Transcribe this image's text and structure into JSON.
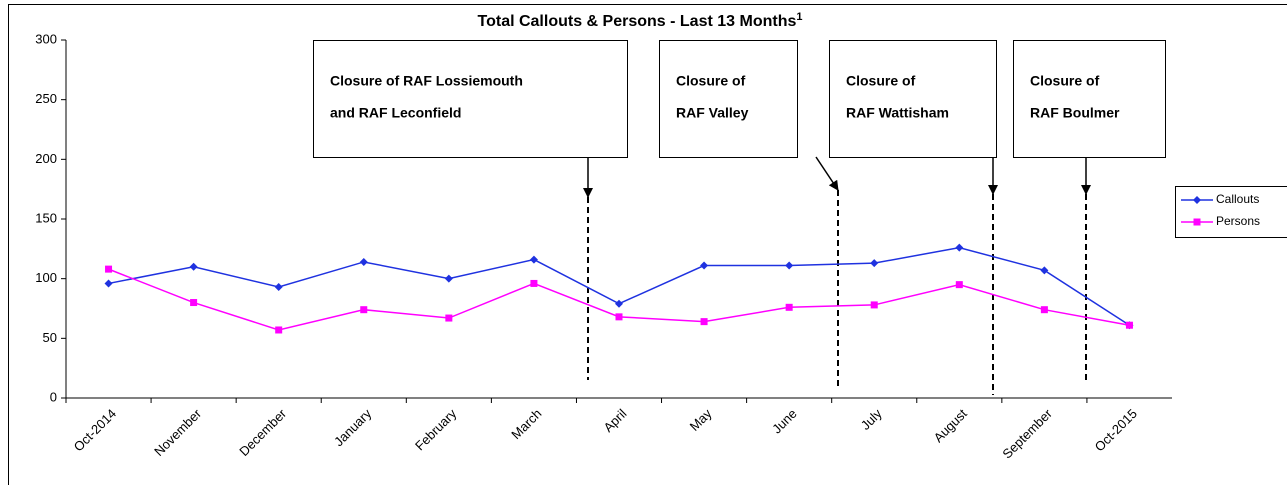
{
  "chart_data": {
    "type": "line",
    "title": "Total Callouts & Persons - Last 13 Months",
    "title_superscript": "1",
    "categories": [
      "Oct-2014",
      "November",
      "December",
      "January",
      "February",
      "March",
      "April",
      "May",
      "June",
      "July",
      "August",
      "September",
      "Oct-2015"
    ],
    "series": [
      {
        "name": "Callouts",
        "color": "#1f32e0",
        "marker": "diamond",
        "values": [
          96,
          110,
          93,
          114,
          100,
          116,
          79,
          111,
          111,
          113,
          126,
          107,
          61
        ]
      },
      {
        "name": "Persons",
        "color": "#ff00ff",
        "marker": "square",
        "values": [
          108,
          80,
          57,
          74,
          67,
          96,
          68,
          64,
          76,
          78,
          95,
          74,
          61
        ]
      }
    ],
    "ylim": [
      0,
      300
    ],
    "yticks": [
      0,
      50,
      100,
      150,
      200,
      250,
      300
    ],
    "grid": false,
    "legend": "right",
    "annotations": [
      {
        "lines": [
          "Closure of RAF Lossiemouth",
          "and RAF Leconfield"
        ]
      },
      {
        "lines": [
          "Closure of",
          "RAF Valley"
        ]
      },
      {
        "lines": [
          "Closure of",
          "RAF Wattisham"
        ]
      },
      {
        "lines": [
          "Closure of",
          "RAF Boulmer"
        ]
      }
    ]
  }
}
